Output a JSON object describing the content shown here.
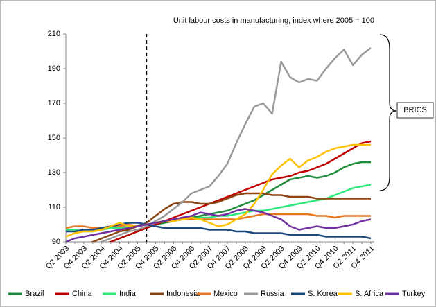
{
  "chart_data": {
    "type": "line",
    "title": "Unit labour costs in manufacturing, index where 2005 = 100",
    "annotation": "BRICS",
    "categories": [
      "Q2 2003",
      null,
      "Q4 2003",
      null,
      "Q2 2004",
      null,
      "Q4 2004",
      null,
      "Q2 2005",
      null,
      "Q4 2005",
      null,
      "Q2 2006",
      null,
      "Q4 2006",
      null,
      "Q2 2007",
      null,
      "Q4 2007",
      null,
      "Q2 2008",
      null,
      "Q4 2008",
      null,
      "Q2 2009",
      null,
      "Q4 2009",
      null,
      "Q2 2010",
      null,
      "Q4 2010",
      null,
      "Q2 2011",
      null,
      "Q4 2011"
    ],
    "ylim": [
      90,
      210
    ],
    "yticks": [
      90,
      110,
      130,
      150,
      170,
      190,
      210
    ],
    "grid": false,
    "legend": "bottom",
    "series": [
      {
        "name": "Brazil",
        "color": "#1e8c3a",
        "values": [
          84,
          85,
          86,
          87,
          88,
          90,
          92,
          94,
          96,
          98,
          100,
          101,
          102,
          103,
          104,
          105,
          106,
          107,
          108,
          110,
          112,
          114,
          117,
          120,
          123,
          126,
          127,
          128,
          127,
          128,
          130,
          133,
          135,
          136,
          136
        ]
      },
      {
        "name": "China",
        "color": "#c00000",
        "values": [
          84,
          85,
          86,
          87,
          88,
          90,
          92,
          94,
          96,
          98,
          100,
          102,
          104,
          106,
          108,
          110,
          112,
          114,
          116,
          118,
          120,
          122,
          124,
          126,
          127,
          128,
          130,
          131,
          133,
          135,
          138,
          141,
          144,
          147,
          148
        ]
      },
      {
        "name": "India",
        "color": "#2ee87a",
        "values": [
          97,
          97,
          96,
          96,
          97,
          98,
          98,
          99,
          99,
          100,
          101,
          102,
          102,
          103,
          103,
          104,
          104,
          105,
          105,
          106,
          107,
          108,
          108,
          109,
          110,
          111,
          112,
          113,
          114,
          115,
          117,
          119,
          121,
          122,
          123
        ]
      },
      {
        "name": "Indonesia",
        "color": "#8b4513",
        "values": [
          86,
          87,
          88,
          90,
          92,
          94,
          96,
          97,
          99,
          101,
          105,
          109,
          112,
          113,
          113,
          112,
          112,
          113,
          115,
          117,
          118,
          118,
          118,
          117,
          117,
          116,
          116,
          116,
          115,
          115,
          115,
          115,
          115,
          115,
          115
        ]
      },
      {
        "name": "Mexico",
        "color": "#e87722",
        "values": [
          98,
          99,
          99,
          98,
          98,
          99,
          99,
          100,
          99,
          100,
          101,
          102,
          102,
          103,
          103,
          103,
          103,
          103,
          103,
          103,
          104,
          105,
          106,
          106,
          106,
          106,
          106,
          106,
          105,
          105,
          104,
          105,
          105,
          105,
          105
        ]
      },
      {
        "name": "Russia",
        "color": "#999999",
        "values": [
          85,
          86,
          87,
          88,
          90,
          92,
          94,
          96,
          97,
          99,
          102,
          105,
          109,
          113,
          118,
          120,
          122,
          128,
          135,
          147,
          158,
          168,
          170,
          164,
          194,
          185,
          182,
          184,
          183,
          190,
          196,
          201,
          192,
          198,
          202
        ]
      },
      {
        "name": "S. Korea",
        "color": "#1f497d",
        "values": [
          96,
          96,
          97,
          97,
          98,
          99,
          100,
          101,
          101,
          100,
          99,
          98,
          98,
          98,
          98,
          98,
          97,
          97,
          97,
          96,
          96,
          95,
          95,
          95,
          95,
          94,
          94,
          94,
          94,
          93,
          93,
          93,
          93,
          93,
          92
        ]
      },
      {
        "name": "S. Africa",
        "color": "#ffc000",
        "values": [
          93,
          95,
          96,
          96,
          97,
          99,
          101,
          99,
          99,
          100,
          101,
          102,
          102,
          103,
          104,
          103,
          101,
          99,
          100,
          103,
          106,
          112,
          120,
          129,
          134,
          138,
          133,
          137,
          139,
          142,
          144,
          145,
          146,
          146,
          146
        ]
      },
      {
        "name": "Turkey",
        "color": "#7030a0",
        "values": [
          90,
          92,
          93,
          94,
          95,
          96,
          97,
          98,
          99,
          100,
          101,
          102,
          103,
          104,
          105,
          107,
          106,
          105,
          106,
          108,
          109,
          108,
          107,
          105,
          103,
          99,
          97,
          98,
          99,
          98,
          98,
          99,
          100,
          102,
          103
        ]
      }
    ]
  }
}
